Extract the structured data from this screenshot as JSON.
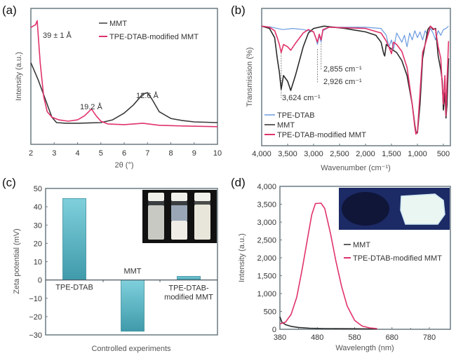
{
  "chart_data": [
    {
      "panel": "(a)",
      "type": "line",
      "xlabel": "2θ (°)",
      "ylabel": "Intensity (a.u.)",
      "xlim": [
        2,
        10
      ],
      "ylim": [
        0,
        100
      ],
      "xticks": [
        "2",
        "3",
        "4",
        "5",
        "6",
        "7",
        "8",
        "9",
        "10"
      ],
      "yticks_shown": false,
      "legend": {
        "placement": "top-right",
        "entries": [
          "MMT",
          "TPE-DTAB-modified MMT"
        ]
      },
      "annotations": [
        {
          "text": "39 ± 1 Å",
          "x": 2.6,
          "y": 92
        },
        {
          "text": "19.2 Å",
          "x": 4.3,
          "y": 33
        },
        {
          "text": "12.6 Å",
          "x": 6.8,
          "y": 48
        }
      ],
      "series": [
        {
          "name": "MMT",
          "color": "#3a3a3a",
          "x": [
            2.0,
            2.3,
            2.6,
            2.9,
            3.1,
            3.5,
            4.0,
            5.0,
            5.5,
            6.0,
            6.4,
            6.8,
            7.0,
            7.2,
            7.5,
            8.0,
            8.5,
            9.0,
            10.0
          ],
          "y": [
            60,
            48,
            34,
            20,
            16,
            15.5,
            15.5,
            16,
            18,
            23,
            29,
            37,
            38,
            33,
            24,
            19,
            17.5,
            16.5,
            16
          ]
        },
        {
          "name": "TPE-DTAB-modified MMT",
          "color": "#e0336a",
          "x": [
            2.0,
            2.1,
            2.2,
            2.27,
            2.4,
            2.55,
            2.7,
            2.9,
            3.2,
            3.6,
            4.0,
            4.3,
            4.6,
            4.8,
            5.0,
            5.3,
            6.0,
            6.8,
            7.5,
            8.5,
            10.0
          ],
          "y": [
            86,
            87,
            88,
            91,
            60,
            35,
            24,
            20,
            18,
            17,
            18,
            21,
            26,
            21,
            17,
            15,
            14.5,
            15.5,
            14,
            13.5,
            13
          ]
        }
      ]
    },
    {
      "panel": "(b)",
      "type": "line",
      "xlabel": "Wavenumber (cm⁻¹)",
      "ylabel": "Transmission (%)",
      "xlim": [
        4000,
        400
      ],
      "ylim": [
        0,
        100
      ],
      "xticks": [
        "4,000",
        "3,500",
        "3,000",
        "2,500",
        "2,000",
        "1,500",
        "1,000",
        "500"
      ],
      "yticks_shown": false,
      "legend": {
        "placement": "bottom-left",
        "entries": [
          "TPE-DTAB",
          "MMT",
          "TPE-DTAB-modified MMT"
        ]
      },
      "annotations": [
        {
          "text": "2,855 cm⁻¹",
          "x": 2855
        },
        {
          "text": "2,926 cm⁻¹",
          "x": 2926
        },
        {
          "text": "3,624 cm⁻¹",
          "x": 3624
        }
      ],
      "series": [
        {
          "name": "TPE-DTAB",
          "color": "#6a9be0",
          "x": [
            4000,
            3800,
            3600,
            3400,
            3200,
            3000,
            2960,
            2926,
            2890,
            2855,
            2820,
            2700,
            2000,
            1700,
            1600,
            1550,
            1500,
            1460,
            1400,
            1300,
            1250,
            1200,
            1150,
            1100,
            1050,
            1000,
            950,
            900,
            850,
            800,
            750,
            700,
            650,
            600,
            550,
            500,
            450,
            400
          ],
          "y": [
            98,
            97,
            95,
            96,
            95,
            93,
            88,
            82,
            90,
            84,
            94,
            97,
            97,
            96,
            90,
            80,
            86,
            78,
            92,
            84,
            90,
            80,
            92,
            86,
            94,
            88,
            93,
            86,
            94,
            90,
            96,
            92,
            86,
            94,
            90,
            95,
            96,
            98
          ]
        },
        {
          "name": "MMT",
          "color": "#2b2b2b",
          "x": [
            4000,
            3850,
            3750,
            3700,
            3660,
            3624,
            3580,
            3500,
            3440,
            3350,
            3200,
            3100,
            3000,
            2800,
            2400,
            2000,
            1800,
            1700,
            1650,
            1630,
            1600,
            1500,
            1400,
            1300,
            1200,
            1100,
            1050,
            1030,
            1000,
            950,
            900,
            800,
            750,
            700,
            650,
            600,
            550,
            520,
            500,
            470,
            450,
            430,
            400
          ],
          "y": [
            98,
            96,
            88,
            70,
            58,
            43,
            55,
            50,
            42,
            55,
            80,
            92,
            96,
            98,
            96,
            93,
            90,
            84,
            74,
            72,
            82,
            78,
            75,
            68,
            55,
            30,
            12,
            6,
            5,
            30,
            70,
            95,
            98,
            95,
            96,
            72,
            60,
            50,
            25,
            40,
            18,
            30,
            70
          ]
        },
        {
          "name": "TPE-DTAB-modified MMT",
          "color": "#e0336a",
          "x": [
            4000,
            3850,
            3750,
            3700,
            3660,
            3624,
            3580,
            3500,
            3440,
            3350,
            3200,
            3100,
            3000,
            2960,
            2926,
            2890,
            2855,
            2820,
            2700,
            2000,
            1700,
            1600,
            1550,
            1500,
            1460,
            1400,
            1300,
            1200,
            1100,
            1050,
            1030,
            1000,
            950,
            900,
            850,
            800,
            750,
            700,
            650,
            600,
            550,
            520,
            500,
            470,
            450,
            430,
            400
          ],
          "y": [
            98,
            97,
            94,
            88,
            82,
            75,
            82,
            80,
            77,
            83,
            92,
            95,
            93,
            88,
            84,
            91,
            86,
            95,
            97,
            96,
            92,
            85,
            80,
            74,
            84,
            82,
            76,
            62,
            30,
            10,
            4,
            6,
            40,
            75,
            82,
            90,
            98,
            96,
            95,
            80,
            70,
            45,
            30,
            55,
            20,
            50,
            85
          ]
        }
      ]
    },
    {
      "panel": "(c)",
      "type": "bar",
      "xlabel": "Controlled experiments",
      "ylabel": "Zeta potential (mV)",
      "ylim": [
        -30,
        50
      ],
      "yticks": [
        50,
        40,
        30,
        20,
        10,
        0,
        -10,
        -20,
        -30
      ],
      "ytick_labels": [
        "50",
        "40",
        "30",
        "20",
        "10",
        "0",
        "−10",
        "−20",
        "−30"
      ],
      "categories": [
        "TPE-DTAB",
        "MMT",
        "TPE-DTAB-modified MMT"
      ],
      "category_label_lines": [
        [
          "TPE-DTAB"
        ],
        [
          "MMT"
        ],
        [
          "TPE-DTAB-",
          "modified MMT"
        ]
      ],
      "values": [
        44.5,
        -28,
        2
      ],
      "bar_color": "#5bb5c4",
      "inset": "photo of three vials"
    },
    {
      "panel": "(d)",
      "type": "line",
      "xlabel": "Wavelength (nm)",
      "ylabel": "Intensity (a.u.)",
      "xlim": [
        380,
        835
      ],
      "ylim": [
        0,
        4000
      ],
      "xticks": [
        380,
        480,
        580,
        680,
        780
      ],
      "yticks": [
        0,
        500,
        1000,
        1500,
        2000,
        2500,
        3000,
        3500,
        4000
      ],
      "ytick_labels": [
        "0",
        "500",
        "1,000",
        "1,500",
        "2,000",
        "2,500",
        "3,000",
        "3,500",
        "4,000"
      ],
      "legend": {
        "placement": "center-right",
        "entries": [
          "MMT",
          "TPE-DTAB-modified MMT"
        ]
      },
      "inset": "photo of samples under UV light",
      "series": [
        {
          "name": "MMT",
          "color": "#2b2b2b",
          "x": [
            380,
            385,
            395,
            410,
            430,
            460,
            500,
            560,
            640
          ],
          "y": [
            350,
            200,
            130,
            80,
            50,
            30,
            20,
            15,
            10
          ]
        },
        {
          "name": "TPE-DTAB-modified MMT",
          "color": "#e0336a",
          "x": [
            380,
            395,
            410,
            425,
            440,
            455,
            465,
            475,
            490,
            500,
            515,
            530,
            545,
            560,
            580,
            600,
            620,
            640
          ],
          "y": [
            150,
            200,
            420,
            900,
            1700,
            2600,
            3200,
            3520,
            3530,
            3380,
            2700,
            1900,
            1200,
            650,
            250,
            90,
            40,
            20
          ]
        }
      ]
    }
  ],
  "panel_labels": [
    "(a)",
    "(b)",
    "(c)",
    "(d)"
  ]
}
